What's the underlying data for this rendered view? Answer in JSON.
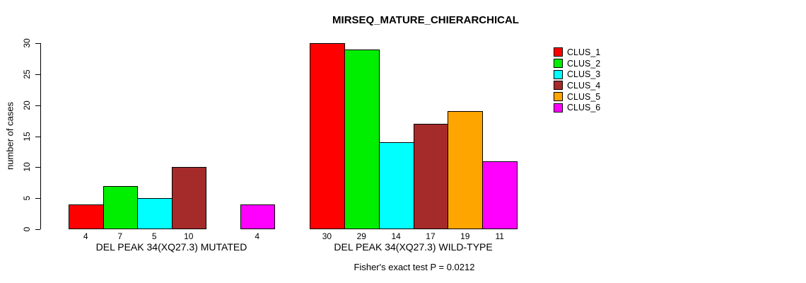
{
  "title": "MIRSEQ_MATURE_CHIERARCHICAL",
  "chart_data": {
    "type": "bar",
    "title": "MIRSEQ_MATURE_CHIERARCHICAL",
    "xlabel": "",
    "ylabel": "number of cases",
    "ylim": [
      0,
      30
    ],
    "yticks": [
      0,
      5,
      10,
      15,
      20,
      25,
      30
    ],
    "grid": false,
    "legend_position": "right",
    "legend": [
      {
        "name": "CLUS_1",
        "color": "#FF0000"
      },
      {
        "name": "CLUS_2",
        "color": "#00EE00"
      },
      {
        "name": "CLUS_3",
        "color": "#00FFFF"
      },
      {
        "name": "CLUS_4",
        "color": "#A52A2A"
      },
      {
        "name": "CLUS_5",
        "color": "#FFA500"
      },
      {
        "name": "CLUS_6",
        "color": "#FF00FF"
      }
    ],
    "groups": [
      {
        "label": "DEL PEAK 34(XQ27.3) MUTATED",
        "values": [
          4,
          7,
          5,
          10,
          0,
          4
        ],
        "bar_labels": [
          "4",
          "7",
          "5",
          "10",
          "",
          "4"
        ]
      },
      {
        "label": "DEL PEAK 34(XQ27.3) WILD-TYPE",
        "values": [
          30,
          29,
          14,
          17,
          19,
          11
        ],
        "bar_labels": [
          "30",
          "29",
          "14",
          "17",
          "19",
          "11"
        ]
      }
    ],
    "annotation": "Fisher's exact test P = 0.0212"
  }
}
